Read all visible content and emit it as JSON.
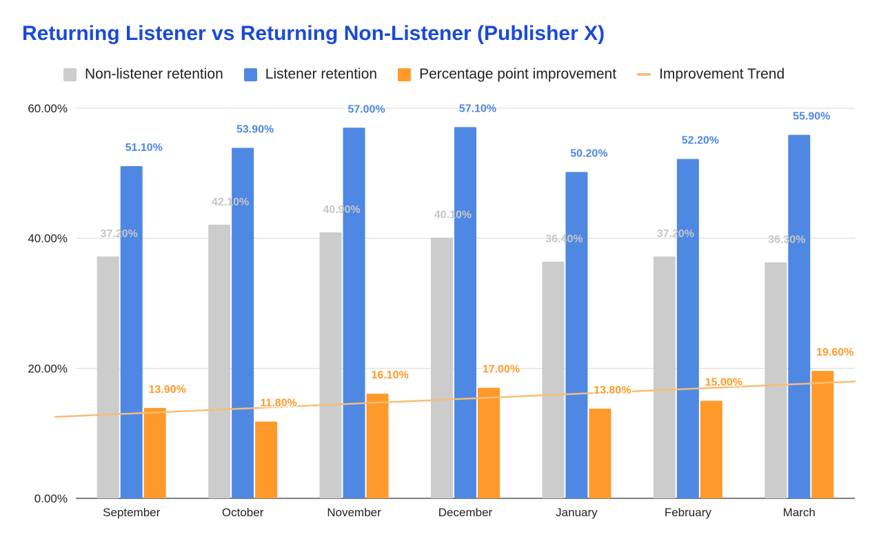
{
  "chart_data": {
    "type": "bar",
    "title": "Returning Listener vs Returning Non-Listener (Publisher X)",
    "categories": [
      "September",
      "October",
      "November",
      "December",
      "January",
      "February",
      "March"
    ],
    "series": [
      {
        "name": "Non-listener retention",
        "color": "#cccccc",
        "label_color": "#c6c6c6",
        "values": [
          37.2,
          42.1,
          40.9,
          40.1,
          36.4,
          37.2,
          36.3
        ],
        "labels": [
          "37.20%",
          "42.10%",
          "40.90%",
          "40.10%",
          "36.40%",
          "37.20%",
          "36.30%"
        ]
      },
      {
        "name": "Listener retention",
        "color": "#4f88e3",
        "label_color": "#4f88e3",
        "values": [
          51.1,
          53.9,
          57.0,
          57.1,
          50.2,
          52.2,
          55.9
        ],
        "labels": [
          "51.10%",
          "53.90%",
          "57.00%",
          "57.10%",
          "50.20%",
          "52.20%",
          "55.90%"
        ]
      },
      {
        "name": "Percentage point improvement",
        "color": "#ff9a2a",
        "label_color": "#ff9a2a",
        "values": [
          13.9,
          11.8,
          16.1,
          17.0,
          13.8,
          15.0,
          19.6
        ],
        "labels": [
          "13.90%",
          "11.80%",
          "16.10%",
          "17.00%",
          "13.80%",
          "15.00%",
          "19.60%"
        ]
      }
    ],
    "trendline": {
      "name": "Improvement Trend",
      "color": "#f7bd74",
      "of_series": "Percentage point improvement",
      "type": "linear"
    },
    "ylim": [
      0,
      60
    ],
    "yticks": [
      0,
      20,
      40,
      60
    ],
    "ytick_labels": [
      "0.00%",
      "20.00%",
      "40.00%",
      "60.00%"
    ],
    "xlabel": "",
    "ylabel": "",
    "grid": true,
    "legend_position": "top-left"
  }
}
